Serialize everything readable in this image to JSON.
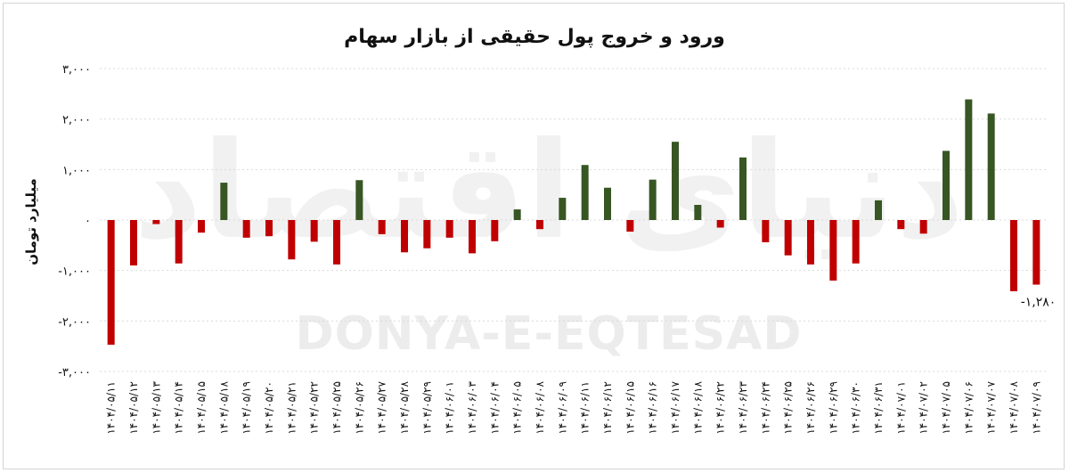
{
  "watermark": {
    "latin": "DONYA-E-EQTESAD",
    "arabic": "دنیای اقتصاد"
  },
  "colors": {
    "positive": "#375623",
    "negative": "#c00000"
  },
  "chart_data": {
    "type": "bar",
    "title": "ورود و خروج پول حقیقی از بازار سهام",
    "ylabel": "میلیارد تومان",
    "xlabel": "",
    "ylim": [
      -3000,
      3000
    ],
    "y_ticks": [
      3000,
      2000,
      1000,
      0,
      -1000,
      -2000,
      -3000
    ],
    "y_tick_labels": [
      "۳,۰۰۰",
      "۲,۰۰۰",
      "۱,۰۰۰",
      "۰",
      "-۱,۰۰۰",
      "-۲,۰۰۰",
      "-۳,۰۰۰"
    ],
    "grid": true,
    "legend": "none",
    "categories": [
      "۱۴۰۴/۰۵/۱۱",
      "۱۴۰۴/۰۵/۱۲",
      "۱۴۰۴/۰۵/۱۳",
      "۱۴۰۴/۰۵/۱۴",
      "۱۴۰۴/۰۵/۱۵",
      "۱۴۰۴/۰۵/۱۸",
      "۱۴۰۴/۰۵/۱۹",
      "۱۴۰۴/۰۵/۲۰",
      "۱۴۰۴/۰۵/۲۱",
      "۱۴۰۴/۰۵/۲۲",
      "۱۴۰۴/۰۵/۲۵",
      "۱۴۰۴/۰۵/۲۶",
      "۱۴۰۴/۰۵/۲۷",
      "۱۴۰۴/۰۵/۲۸",
      "۱۴۰۴/۰۵/۲۹",
      "۱۴۰۴/۰۶/۰۱",
      "۱۴۰۴/۰۶/۰۳",
      "۱۴۰۴/۰۶/۰۴",
      "۱۴۰۴/۰۶/۰۵",
      "۱۴۰۴/۰۶/۰۸",
      "۱۴۰۴/۰۶/۰۹",
      "۱۴۰۴/۰۶/۱۱",
      "۱۴۰۴/۰۶/۱۲",
      "۱۴۰۴/۰۶/۱۵",
      "۱۴۰۴/۰۶/۱۶",
      "۱۴۰۴/۰۶/۱۷",
      "۱۴۰۴/۰۶/۱۸",
      "۱۴۰۴/۰۶/۲۲",
      "۱۴۰۴/۰۶/۲۳",
      "۱۴۰۴/۰۶/۲۴",
      "۱۴۰۴/۰۶/۲۵",
      "۱۴۰۴/۰۶/۲۶",
      "۱۴۰۴/۰۶/۲۹",
      "۱۴۰۴/۰۶/۳۰",
      "۱۴۰۴/۰۶/۳۱",
      "۱۴۰۴/۰۷/۰۱",
      "۱۴۰۴/۰۷/۰۲",
      "۱۴۰۴/۰۷/۰۵",
      "۱۴۰۴/۰۷/۰۶",
      "۱۴۰۴/۰۷/۰۷",
      "۱۴۰۴/۰۷/۰۸",
      "۱۴۰۴/۰۷/۰۹"
    ],
    "values": [
      -2470,
      -900,
      -80,
      -860,
      -250,
      740,
      -350,
      -320,
      -780,
      -430,
      -880,
      790,
      -280,
      -640,
      -560,
      -350,
      -660,
      -420,
      210,
      -180,
      440,
      1090,
      640,
      -230,
      800,
      1550,
      300,
      -150,
      1240,
      -440,
      -700,
      -880,
      -1200,
      -860,
      390,
      -180,
      -270,
      1370,
      2390,
      2110,
      -1410,
      -1280
    ],
    "annotations": [
      {
        "index": 41,
        "text": "-۱,۲۸۰"
      }
    ]
  }
}
